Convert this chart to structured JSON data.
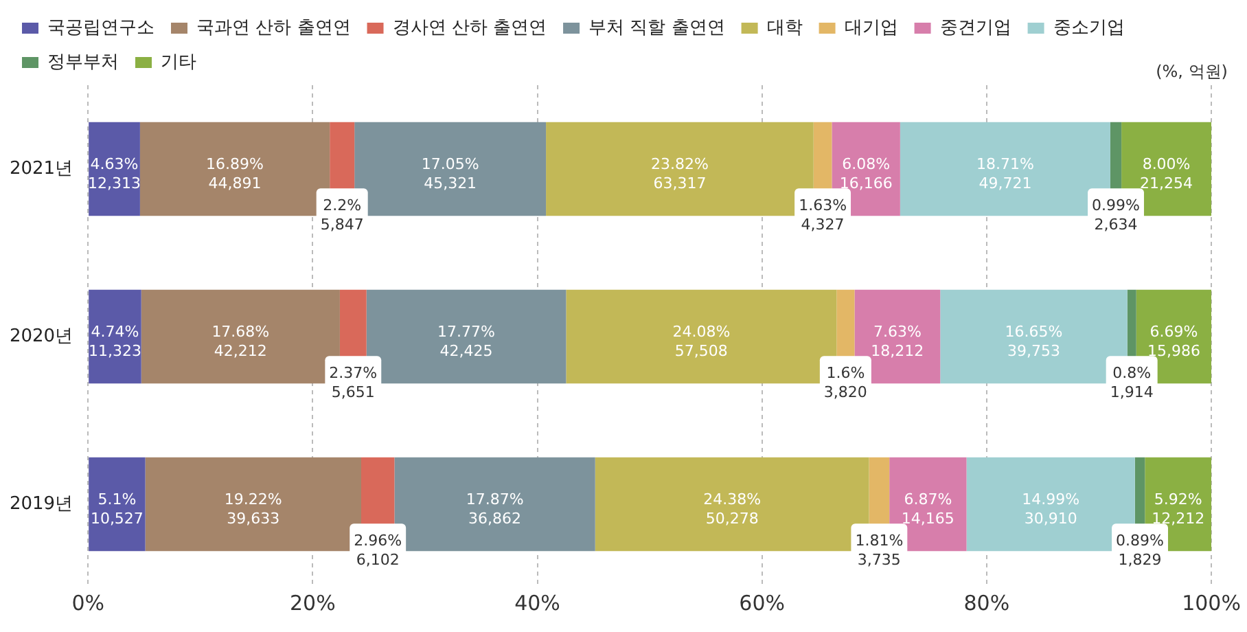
{
  "chart_data": {
    "type": "bar",
    "orientation": "horizontal",
    "stacked": true,
    "categories": [
      "2021년",
      "2020년",
      "2019년"
    ],
    "series": [
      {
        "name": "국공립연구소",
        "color": "#5b5aa8",
        "values": [
          4.63,
          4.74,
          5.1
        ],
        "value_labels": [
          "4.63%\n12,313",
          "4.74%\n11,323",
          "5.1%\n10,527"
        ]
      },
      {
        "name": "국과연 산하 출연연",
        "color": "#a5856a",
        "values": [
          16.89,
          17.68,
          19.22
        ],
        "value_labels": [
          "16.89%\n44,891",
          "17.68%\n42,212",
          "19.22%\n39,633"
        ]
      },
      {
        "name": "경사연 산하 출연연",
        "color": "#d9695a",
        "values": [
          2.2,
          2.37,
          2.96
        ],
        "value_labels": [
          "2.2%\n5,847",
          "2.37%\n5,651",
          "2.96%\n6,102"
        ]
      },
      {
        "name": "부처 직할 출연연",
        "color": "#7d939c",
        "values": [
          17.05,
          17.77,
          17.87
        ],
        "value_labels": [
          "17.05%\n45,321",
          "17.77%\n42,425",
          "17.87%\n36,862"
        ]
      },
      {
        "name": "대학",
        "color": "#c2b857",
        "values": [
          23.82,
          24.08,
          24.38
        ],
        "value_labels": [
          "23.82%\n63,317",
          "24.08%\n57,508",
          "24.38%\n50,278"
        ]
      },
      {
        "name": "대기업",
        "color": "#e3b766",
        "values": [
          1.63,
          1.6,
          1.81
        ],
        "value_labels": [
          "1.63%\n4,327",
          "1.6%\n3,820",
          "1.81%\n3,735"
        ]
      },
      {
        "name": "중견기업",
        "color": "#d77eab",
        "values": [
          6.08,
          7.63,
          6.87
        ],
        "value_labels": [
          "6.08%\n16,166",
          "7.63%\n18,212",
          "6.87%\n14,165"
        ]
      },
      {
        "name": "중소기업",
        "color": "#9fcfd1",
        "values": [
          18.71,
          16.65,
          14.99
        ],
        "value_labels": [
          "18.71%\n49,721",
          "16.65%\n39,753",
          "14.99%\n30,910"
        ]
      },
      {
        "name": "정부부처",
        "color": "#5e9565",
        "values": [
          0.99,
          0.8,
          0.89
        ],
        "value_labels": [
          "0.99%\n2,634",
          "0.8%\n1,914",
          "0.89%\n1,829"
        ]
      },
      {
        "name": "기타",
        "color": "#8bb043",
        "values": [
          8.0,
          6.69,
          5.92
        ],
        "value_labels": [
          "8.00%\n21,254",
          "6.69%\n15,986",
          "5.92%\n12,212"
        ]
      }
    ],
    "xlim": [
      0,
      100
    ],
    "xticks": [
      {
        "value": 0,
        "label": "0%"
      },
      {
        "value": 20,
        "label": "20%"
      },
      {
        "value": 40,
        "label": "40%"
      },
      {
        "value": 60,
        "label": "60%"
      },
      {
        "value": 80,
        "label": "80%"
      },
      {
        "value": 100,
        "label": "100%"
      }
    ],
    "grid": "x",
    "legend": "top left",
    "annotations": [
      "(%, 억원)"
    ]
  }
}
